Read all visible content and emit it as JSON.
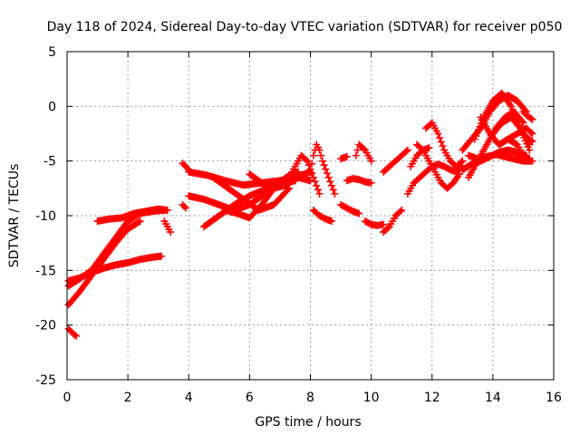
{
  "chart_data": {
    "type": "scatter",
    "title": "Day 118 of 2024, Sidereal Day-to-day VTEC variation (SDTVAR) for receiver p050",
    "xlabel": "GPS time / hours",
    "ylabel": "SDTVAR / TECUs",
    "xlim": [
      0,
      16
    ],
    "ylim": [
      -25,
      5
    ],
    "xticks": [
      "0",
      "2",
      "4",
      "6",
      "8",
      "10",
      "12",
      "14",
      "16"
    ],
    "yticks": [
      "5",
      "0",
      "-5",
      "-10",
      "-15",
      "-20",
      "-25"
    ],
    "grid": true,
    "marker": "+",
    "series": [
      {
        "name": "SDTVAR",
        "color": "#ff0000",
        "tracks": [
          {
            "x": [
              0.0,
              0.4,
              0.8,
              1.2,
              1.6,
              2.0,
              2.4,
              2.8,
              3.2
            ],
            "y": [
              -16.5,
              -15.8,
              -15.0,
              -13.5,
              -12.0,
              -10.5,
              -9.8,
              -9.6,
              -9.5
            ]
          },
          {
            "x": [
              0.0,
              0.4,
              0.8,
              1.2,
              1.6,
              2.0,
              2.4
            ],
            "y": [
              -18.3,
              -17.0,
              -15.5,
              -14.0,
              -12.5,
              -11.2,
              -10.5
            ]
          },
          {
            "x": [
              0.0,
              0.4,
              0.8,
              1.2,
              1.6,
              2.0,
              2.4,
              2.8,
              3.1
            ],
            "y": [
              -16.0,
              -15.7,
              -15.2,
              -14.8,
              -14.5,
              -14.3,
              -14.0,
              -13.8,
              -13.7
            ]
          },
          {
            "x": [
              1.0,
              1.4,
              1.8,
              2.2,
              2.6,
              3.0,
              3.3
            ],
            "y": [
              -10.5,
              -10.3,
              -10.2,
              -9.8,
              -9.6,
              -9.4,
              -9.5
            ]
          },
          {
            "x": [
              0.0,
              0.1,
              0.2,
              0.3
            ],
            "y": [
              -20.2,
              -20.5,
              -20.8,
              -21.0
            ]
          },
          {
            "x": [
              3.2,
              3.3,
              3.4
            ],
            "y": [
              -10.5,
              -11.0,
              -11.5
            ]
          },
          {
            "x": [
              3.8,
              3.9,
              4.0
            ],
            "y": [
              -5.2,
              -5.5,
              -5.8
            ]
          },
          {
            "x": [
              3.8,
              3.9
            ],
            "y": [
              -9.0,
              -9.3
            ]
          },
          {
            "x": [
              4.0,
              4.6,
              5.2,
              5.8,
              6.4,
              7.0,
              7.4
            ],
            "y": [
              -6.0,
              -6.3,
              -6.8,
              -7.2,
              -7.0,
              -6.8,
              -6.5
            ]
          },
          {
            "x": [
              4.0,
              4.5,
              5.0,
              5.5,
              6.0,
              6.5,
              7.0,
              7.5
            ],
            "y": [
              -8.2,
              -8.5,
              -9.0,
              -9.5,
              -9.0,
              -8.0,
              -7.0,
              -6.8
            ]
          },
          {
            "x": [
              4.5,
              5.0,
              5.5,
              6.0,
              6.5,
              7.0,
              7.5,
              8.0
            ],
            "y": [
              -11.0,
              -10.0,
              -9.0,
              -8.2,
              -7.6,
              -7.0,
              -6.5,
              -6.0
            ]
          },
          {
            "x": [
              4.8,
              5.3,
              5.8,
              6.3,
              6.8,
              7.3
            ],
            "y": [
              -6.5,
              -7.5,
              -8.5,
              -9.5,
              -9.0,
              -7.5
            ]
          },
          {
            "x": [
              5.2,
              5.6,
              6.0,
              6.4,
              6.8,
              7.2,
              7.6
            ],
            "y": [
              -9.5,
              -9.8,
              -10.2,
              -9.0,
              -7.5,
              -6.5,
              -6.0
            ]
          },
          {
            "x": [
              6.0,
              6.4,
              6.8,
              7.2,
              7.6,
              8.0
            ],
            "y": [
              -6.2,
              -7.0,
              -7.5,
              -7.2,
              -6.5,
              -6.8
            ]
          },
          {
            "x": [
              7.3,
              7.5,
              7.7,
              7.9,
              8.1,
              8.3
            ],
            "y": [
              -6.5,
              -5.5,
              -4.5,
              -5.0,
              -6.5,
              -8.0
            ]
          },
          {
            "x": [
              8.0,
              8.1,
              8.2,
              8.3,
              8.4,
              8.6,
              8.8
            ],
            "y": [
              -6.0,
              -4.5,
              -3.5,
              -4.0,
              -5.0,
              -6.5,
              -8.0
            ]
          },
          {
            "x": [
              8.1,
              8.3,
              8.5,
              8.7
            ],
            "y": [
              -9.5,
              -10.0,
              -10.3,
              -10.5
            ]
          },
          {
            "x": [
              9.0,
              9.2
            ],
            "y": [
              -4.8,
              -4.6
            ]
          },
          {
            "x": [
              9.0,
              9.2,
              9.4,
              9.6
            ],
            "y": [
              -9.0,
              -9.3,
              -9.6,
              -9.8
            ]
          },
          {
            "x": [
              9.5,
              9.6,
              9.8,
              10.0
            ],
            "y": [
              -4.5,
              -3.5,
              -4.0,
              -5.0
            ]
          },
          {
            "x": [
              9.2,
              9.4,
              9.6,
              9.8,
              10.0
            ],
            "y": [
              -6.8,
              -6.6,
              -6.7,
              -6.9,
              -7.0
            ]
          },
          {
            "x": [
              9.8,
              10.0,
              10.2,
              10.4
            ],
            "y": [
              -10.5,
              -10.8,
              -10.9,
              -10.8
            ]
          },
          {
            "x": [
              10.4,
              10.6,
              10.8,
              11.0
            ],
            "y": [
              -11.5,
              -11.0,
              -10.0,
              -9.5
            ]
          },
          {
            "x": [
              10.4,
              10.6,
              10.8,
              11.0,
              11.2
            ],
            "y": [
              -6.0,
              -5.5,
              -5.0,
              -4.5,
              -4.0
            ]
          },
          {
            "x": [
              11.2,
              11.4,
              11.6,
              11.8,
              12.0,
              12.2,
              12.4,
              12.6,
              12.8,
              13.0
            ],
            "y": [
              -8.0,
              -7.0,
              -6.5,
              -6.0,
              -5.5,
              -5.3,
              -5.5,
              -5.8,
              -6.0,
              -5.5
            ]
          },
          {
            "x": [
              11.5,
              11.7,
              11.9,
              12.1,
              12.3,
              12.5,
              12.7,
              12.9
            ],
            "y": [
              -3.5,
              -4.0,
              -5.0,
              -6.0,
              -7.0,
              -7.5,
              -7.0,
              -6.2
            ]
          },
          {
            "x": [
              11.8,
              12.0,
              12.2,
              12.4,
              12.6,
              12.8,
              13.0
            ],
            "y": [
              -2.0,
              -1.5,
              -2.5,
              -4.0,
              -5.0,
              -5.5,
              -5.0
            ]
          },
          {
            "x": [
              11.3,
              11.5,
              11.7,
              11.9
            ],
            "y": [
              -5.5,
              -4.5,
              -4.0,
              -3.8
            ]
          },
          {
            "x": [
              13.0,
              13.3,
              13.6,
              13.9,
              14.2,
              14.5,
              14.8,
              15.1
            ],
            "y": [
              -4.0,
              -3.0,
              -2.0,
              -0.5,
              0.5,
              1.0,
              0.5,
              -0.5
            ]
          },
          {
            "x": [
              13.2,
              13.5,
              13.8,
              14.1,
              14.4,
              14.7,
              15.0
            ],
            "y": [
              -6.5,
              -5.0,
              -3.5,
              -2.0,
              -1.0,
              -0.5,
              -1.5
            ]
          },
          {
            "x": [
              13.4,
              13.7,
              14.0,
              14.3,
              14.6,
              14.9,
              15.2
            ],
            "y": [
              -3.0,
              -1.0,
              0.5,
              1.2,
              0.0,
              -2.0,
              -4.0
            ]
          },
          {
            "x": [
              13.0,
              13.3,
              13.6,
              13.9,
              14.2,
              14.5,
              14.8,
              15.1
            ],
            "y": [
              -5.8,
              -5.3,
              -5.0,
              -4.6,
              -4.2,
              -4.0,
              -4.2,
              -4.5
            ]
          },
          {
            "x": [
              13.6,
              13.9,
              14.2,
              14.5,
              14.8,
              15.1,
              15.3
            ],
            "y": [
              -1.0,
              -2.5,
              -3.5,
              -3.0,
              -2.5,
              -2.0,
              -2.5
            ]
          },
          {
            "x": [
              14.0,
              14.3,
              14.6,
              14.9,
              15.2
            ],
            "y": [
              -2.5,
              -1.5,
              -1.0,
              -2.0,
              -3.5
            ]
          },
          {
            "x": [
              13.2,
              13.5,
              13.8,
              14.1,
              14.4,
              14.7,
              15.0,
              15.3
            ],
            "y": [
              -4.5,
              -4.8,
              -4.6,
              -4.4,
              -4.6,
              -4.8,
              -5.0,
              -5.0
            ]
          },
          {
            "x": [
              14.5,
              14.8,
              15.0,
              15.2
            ],
            "y": [
              -3.0,
              -3.5,
              -4.5,
              -4.8
            ]
          },
          {
            "x": [
              15.0,
              15.1,
              15.2,
              15.3
            ],
            "y": [
              -2.5,
              -2.8,
              -3.0,
              -3.2
            ]
          },
          {
            "x": [
              15.0,
              15.1,
              15.2,
              15.3
            ],
            "y": [
              -0.5,
              -0.8,
              -1.0,
              -1.2
            ]
          }
        ]
      }
    ]
  }
}
